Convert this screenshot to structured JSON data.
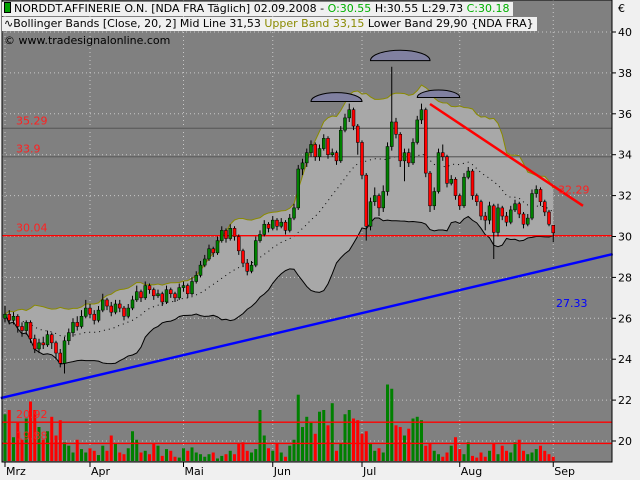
{
  "header": {
    "symbol": "NORDDT.AFFINERIE O.N. [NDA FRA  Täglich] 02.09.2008 - ",
    "open": "O:30.55",
    "high": "H:30.55",
    "low": "L:29.73",
    "close": "C:30.18",
    "indicator": "Bollinger Bands [Close, 20, 2] Mid Line 31,53 ",
    "upper": "Upper Band 33,15",
    "lower": " Lower Band 29,90 {NDA FRA}",
    "copyright": "© www.tradesignalonline.com"
  },
  "colors": {
    "plot_bg": "#808080",
    "band_fill": "#a8a8a8",
    "up": "#008000",
    "down": "#ff0000",
    "upper_band": "#8a8a00",
    "trend_support": "#0000ff",
    "trend_resist": "#ff0000",
    "hline": "#ff0000"
  },
  "chart_data": {
    "type": "candlestick",
    "currency": "€",
    "ylim": [
      19,
      41
    ],
    "yticks": [
      20,
      22,
      24,
      26,
      28,
      30,
      32,
      34,
      36,
      38,
      40
    ],
    "xlabels": [
      {
        "label": "Mrz",
        "i": 0
      },
      {
        "label": "Apr",
        "i": 20
      },
      {
        "label": "Mai",
        "i": 42
      },
      {
        "label": "Jun",
        "i": 63
      },
      {
        "label": "Jul",
        "i": 84
      },
      {
        "label": "Aug",
        "i": 107
      },
      {
        "label": "Sep",
        "i": 129
      }
    ],
    "grid": true,
    "bollinger": {
      "period": 20,
      "stddev": 2,
      "mid": 31.53,
      "upper": 33.15,
      "lower": 29.9
    },
    "hlines": [
      {
        "value": 35.29,
        "label": "35.29",
        "color": "#606060"
      },
      {
        "value": 33.9,
        "label": "33.9",
        "color": "#606060"
      },
      {
        "value": 30.04,
        "label": "30.04",
        "color": "#ff0000"
      },
      {
        "value": 20.92,
        "label": "20.92",
        "color": "#ff0000"
      },
      {
        "value": 19.88,
        "label": "19.88",
        "color": "#ff0000"
      }
    ],
    "trendlines": [
      {
        "from": [
          -1,
          22.1
        ],
        "to": [
          143,
          29.14
        ],
        "label": "27.33",
        "color": "#0000ff"
      },
      {
        "from": [
          100,
          36.48
        ],
        "to": [
          136,
          31.5
        ],
        "label": "32.29",
        "color": "#ff0000"
      }
    ],
    "arcs": [
      {
        "from": 72,
        "to": 84,
        "base": 36.6
      },
      {
        "from": 86,
        "to": 100,
        "base": 38.6
      },
      {
        "from": 97,
        "to": 107,
        "base": 36.8
      }
    ],
    "ohlc": [
      [
        26.0,
        26.6,
        25.8,
        26.2
      ],
      [
        26.2,
        26.4,
        25.7,
        25.9
      ],
      [
        25.9,
        26.3,
        25.7,
        26.1
      ],
      [
        26.1,
        26.2,
        25.3,
        25.6
      ],
      [
        25.6,
        25.8,
        25.1,
        25.4
      ],
      [
        25.4,
        25.9,
        25.2,
        25.8
      ],
      [
        25.8,
        25.9,
        24.8,
        25.0
      ],
      [
        25.0,
        25.2,
        24.3,
        24.5
      ],
      [
        24.5,
        25.0,
        24.3,
        24.8
      ],
      [
        24.8,
        25.1,
        24.5,
        24.7
      ],
      [
        24.7,
        25.4,
        24.6,
        25.2
      ],
      [
        25.2,
        25.3,
        24.5,
        24.8
      ],
      [
        24.8,
        24.9,
        24.0,
        24.3
      ],
      [
        24.3,
        24.5,
        23.6,
        23.8
      ],
      [
        23.8,
        25.1,
        23.3,
        24.9
      ],
      [
        24.9,
        25.5,
        24.7,
        25.3
      ],
      [
        25.3,
        26.0,
        25.1,
        25.8
      ],
      [
        25.8,
        26.1,
        25.4,
        25.6
      ],
      [
        25.6,
        26.4,
        25.5,
        26.1
      ],
      [
        26.1,
        26.9,
        26.0,
        26.5
      ],
      [
        26.5,
        26.7,
        26.0,
        26.2
      ],
      [
        26.2,
        26.4,
        25.7,
        25.9
      ],
      [
        25.9,
        26.6,
        25.8,
        26.4
      ],
      [
        26.4,
        27.2,
        26.3,
        26.9
      ],
      [
        26.9,
        27.0,
        26.4,
        26.6
      ],
      [
        26.6,
        26.8,
        26.1,
        26.3
      ],
      [
        26.3,
        26.9,
        26.2,
        26.7
      ],
      [
        26.7,
        26.9,
        26.3,
        26.5
      ],
      [
        26.5,
        26.6,
        25.9,
        26.1
      ],
      [
        26.1,
        26.7,
        26.0,
        26.5
      ],
      [
        26.5,
        27.1,
        26.4,
        26.9
      ],
      [
        26.9,
        27.6,
        26.8,
        27.3
      ],
      [
        27.3,
        27.4,
        26.8,
        27.0
      ],
      [
        27.0,
        27.8,
        26.9,
        27.6
      ],
      [
        27.6,
        27.7,
        27.2,
        27.4
      ],
      [
        27.4,
        27.5,
        26.9,
        27.1
      ],
      [
        27.1,
        27.4,
        27.0,
        27.2
      ],
      [
        27.2,
        27.3,
        26.6,
        26.8
      ],
      [
        26.8,
        27.6,
        26.7,
        27.4
      ],
      [
        27.4,
        27.5,
        27.0,
        27.2
      ],
      [
        27.2,
        27.3,
        26.8,
        27.0
      ],
      [
        27.0,
        27.7,
        26.9,
        27.5
      ],
      [
        27.5,
        27.8,
        27.3,
        27.6
      ],
      [
        27.6,
        27.7,
        27.0,
        27.2
      ],
      [
        27.2,
        28.0,
        27.1,
        27.8
      ],
      [
        27.8,
        28.3,
        27.7,
        28.1
      ],
      [
        28.1,
        28.8,
        28.0,
        28.6
      ],
      [
        28.6,
        29.1,
        28.5,
        28.9
      ],
      [
        28.9,
        29.6,
        28.8,
        29.4
      ],
      [
        29.4,
        29.5,
        29.0,
        29.2
      ],
      [
        29.2,
        30.0,
        29.1,
        29.8
      ],
      [
        29.8,
        30.5,
        29.7,
        30.3
      ],
      [
        30.3,
        30.4,
        29.7,
        29.9
      ],
      [
        29.9,
        30.6,
        29.8,
        30.4
      ],
      [
        30.4,
        30.5,
        29.8,
        30.0
      ],
      [
        30.0,
        30.1,
        29.1,
        29.3
      ],
      [
        29.3,
        29.4,
        28.5,
        28.7
      ],
      [
        28.7,
        28.9,
        28.1,
        28.3
      ],
      [
        28.3,
        28.8,
        28.2,
        28.6
      ],
      [
        28.6,
        30.0,
        28.5,
        29.8
      ],
      [
        29.8,
        30.3,
        29.7,
        30.1
      ],
      [
        30.1,
        30.8,
        30.0,
        30.6
      ],
      [
        30.6,
        30.7,
        30.2,
        30.4
      ],
      [
        30.4,
        31.0,
        30.3,
        30.8
      ],
      [
        30.8,
        30.9,
        30.3,
        30.5
      ],
      [
        30.5,
        30.9,
        30.4,
        30.7
      ],
      [
        30.7,
        30.8,
        30.1,
        30.3
      ],
      [
        30.3,
        31.1,
        30.2,
        30.9
      ],
      [
        30.9,
        31.6,
        30.8,
        31.4
      ],
      [
        31.4,
        33.5,
        31.3,
        33.3
      ],
      [
        33.3,
        33.8,
        33.0,
        33.6
      ],
      [
        33.6,
        34.3,
        33.4,
        34.1
      ],
      [
        34.1,
        34.7,
        33.9,
        34.5
      ],
      [
        34.5,
        34.6,
        33.7,
        33.9
      ],
      [
        33.9,
        34.5,
        33.7,
        34.3
      ],
      [
        34.3,
        35.0,
        34.2,
        34.8
      ],
      [
        34.8,
        34.9,
        33.8,
        34.0
      ],
      [
        34.0,
        34.3,
        33.9,
        34.1
      ],
      [
        34.1,
        34.2,
        33.5,
        33.7
      ],
      [
        33.7,
        35.4,
        33.6,
        35.2
      ],
      [
        35.2,
        36.0,
        35.1,
        35.8
      ],
      [
        35.8,
        36.5,
        35.6,
        36.2
      ],
      [
        36.2,
        36.3,
        35.2,
        35.4
      ],
      [
        35.4,
        35.5,
        34.0,
        34.6
      ],
      [
        34.6,
        34.7,
        32.8,
        33.0
      ],
      [
        33.0,
        33.1,
        29.8,
        30.5
      ],
      [
        30.5,
        31.9,
        30.3,
        31.7
      ],
      [
        31.7,
        32.4,
        31.5,
        32.0
      ],
      [
        32.0,
        32.1,
        31.0,
        31.4
      ],
      [
        31.4,
        32.5,
        31.2,
        32.2
      ],
      [
        32.2,
        34.6,
        32.0,
        34.4
      ],
      [
        34.4,
        38.3,
        34.2,
        35.6
      ],
      [
        35.6,
        35.8,
        34.8,
        35.0
      ],
      [
        35.0,
        35.1,
        33.4,
        33.7
      ],
      [
        33.7,
        34.3,
        32.7,
        34.1
      ],
      [
        34.1,
        34.3,
        33.4,
        33.6
      ],
      [
        33.6,
        34.8,
        33.5,
        34.6
      ],
      [
        34.6,
        35.9,
        34.5,
        35.7
      ],
      [
        35.7,
        36.5,
        35.5,
        36.2
      ],
      [
        36.2,
        36.3,
        32.9,
        33.1
      ],
      [
        33.1,
        33.2,
        31.2,
        31.5
      ],
      [
        31.5,
        32.4,
        31.3,
        32.2
      ],
      [
        32.2,
        34.3,
        32.1,
        34.1
      ],
      [
        34.1,
        34.5,
        33.7,
        33.9
      ],
      [
        33.9,
        34.0,
        32.4,
        32.6
      ],
      [
        32.6,
        33.0,
        32.5,
        32.8
      ],
      [
        32.8,
        32.9,
        31.8,
        32.0
      ],
      [
        32.0,
        32.1,
        31.3,
        31.5
      ],
      [
        31.5,
        33.1,
        31.4,
        32.9
      ],
      [
        32.9,
        33.4,
        32.8,
        33.2
      ],
      [
        33.2,
        33.3,
        31.8,
        32.0
      ],
      [
        32.0,
        32.1,
        31.5,
        31.7
      ],
      [
        31.7,
        31.8,
        30.8,
        31.0
      ],
      [
        31.0,
        31.2,
        30.3,
        30.8
      ],
      [
        30.8,
        31.7,
        30.6,
        31.5
      ],
      [
        31.5,
        31.6,
        28.9,
        30.2
      ],
      [
        30.2,
        31.6,
        30.0,
        31.4
      ],
      [
        31.4,
        31.5,
        30.8,
        31.0
      ],
      [
        31.0,
        31.2,
        30.5,
        30.7
      ],
      [
        30.7,
        31.5,
        30.6,
        31.3
      ],
      [
        31.3,
        31.8,
        31.2,
        31.6
      ],
      [
        31.6,
        31.7,
        30.9,
        31.1
      ],
      [
        31.1,
        31.2,
        30.4,
        30.6
      ],
      [
        30.6,
        31.1,
        30.5,
        30.9
      ],
      [
        30.9,
        32.3,
        30.8,
        32.1
      ],
      [
        32.1,
        32.5,
        31.9,
        32.3
      ],
      [
        32.3,
        32.4,
        31.5,
        31.7
      ],
      [
        31.7,
        31.8,
        31.0,
        31.2
      ],
      [
        31.2,
        31.3,
        30.5,
        30.6
      ],
      [
        30.55,
        30.55,
        29.73,
        30.18
      ]
    ],
    "volume": [
      55,
      60,
      28,
      45,
      25,
      50,
      70,
      60,
      40,
      25,
      35,
      52,
      30,
      48,
      22,
      18,
      10,
      25,
      14,
      10,
      15,
      12,
      7,
      18,
      12,
      30,
      20,
      10,
      8,
      15,
      35,
      25,
      10,
      12,
      8,
      20,
      18,
      6,
      14,
      12,
      5,
      4,
      15,
      12,
      16,
      10,
      8,
      5,
      8,
      10,
      3,
      6,
      8,
      12,
      8,
      20,
      22,
      12,
      10,
      14,
      60,
      30,
      15,
      12,
      20,
      10,
      5,
      18,
      25,
      78,
      40,
      52,
      45,
      32,
      58,
      60,
      42,
      68,
      12,
      20,
      55,
      60,
      50,
      48,
      32,
      35,
      20,
      12,
      15,
      10,
      90,
      85,
      42,
      40,
      30,
      38,
      50,
      52,
      48,
      18,
      20,
      12,
      8,
      5,
      10,
      18,
      28,
      14,
      8,
      22,
      6,
      4,
      10,
      5,
      12,
      20,
      8,
      18,
      12,
      10,
      22,
      25,
      12,
      8,
      10,
      14,
      18,
      12,
      8,
      5
    ]
  }
}
